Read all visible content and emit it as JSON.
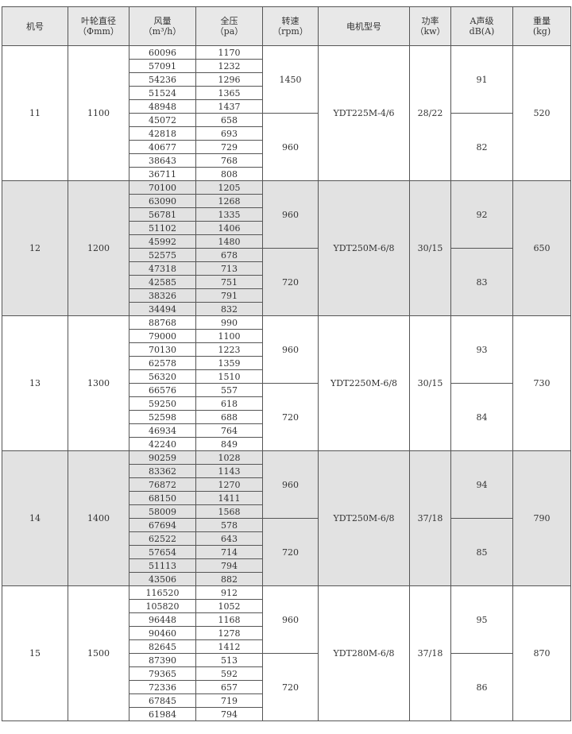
{
  "header": [
    {
      "line1": "机号",
      "line2": ""
    },
    {
      "line1": "叶轮直径",
      "line2": "（Φmm）"
    },
    {
      "line1": "风量",
      "line2": "（m³/h）"
    },
    {
      "line1": "全压",
      "line2": "（pa）"
    },
    {
      "line1": "转速",
      "line2": "（rpm）"
    },
    {
      "line1": "电机型号",
      "line2": ""
    },
    {
      "line1": "功率",
      "line2": "（kw）"
    },
    {
      "line1": "A声级",
      "line2": "dB(A)"
    },
    {
      "line1": "重量",
      "line2": "(kg)"
    }
  ],
  "groups": [
    {
      "no": "11",
      "dia": "1100",
      "motor": "YDT225M-4/6",
      "power": "28/22",
      "weight": "520",
      "shaded": false,
      "speeds": [
        {
          "rpm": "1450",
          "db": "91",
          "rows": [
            [
              "60096",
              "1170"
            ],
            [
              "57091",
              "1232"
            ],
            [
              "54236",
              "1296"
            ],
            [
              "51524",
              "1365"
            ],
            [
              "48948",
              "1437"
            ]
          ]
        },
        {
          "rpm": "960",
          "db": "82",
          "rows": [
            [
              "45072",
              "658"
            ],
            [
              "42818",
              "693"
            ],
            [
              "40677",
              "729"
            ],
            [
              "38643",
              "768"
            ],
            [
              "36711",
              "808"
            ]
          ]
        }
      ]
    },
    {
      "no": "12",
      "dia": "1200",
      "motor": "YDT250M-6/8",
      "power": "30/15",
      "weight": "650",
      "shaded": true,
      "speeds": [
        {
          "rpm": "960",
          "db": "92",
          "rows": [
            [
              "70100",
              "1205"
            ],
            [
              "63090",
              "1268"
            ],
            [
              "56781",
              "1335"
            ],
            [
              "51102",
              "1406"
            ],
            [
              "45992",
              "1480"
            ]
          ]
        },
        {
          "rpm": "720",
          "db": "83",
          "rows": [
            [
              "52575",
              "678"
            ],
            [
              "47318",
              "713"
            ],
            [
              "42585",
              "751"
            ],
            [
              "38326",
              "791"
            ],
            [
              "34494",
              "832"
            ]
          ]
        }
      ]
    },
    {
      "no": "13",
      "dia": "1300",
      "motor": "YDT2250M-6/8",
      "power": "30/15",
      "weight": "730",
      "shaded": false,
      "speeds": [
        {
          "rpm": "960",
          "db": "93",
          "rows": [
            [
              "88768",
              "990"
            ],
            [
              "79000",
              "1100"
            ],
            [
              "70130",
              "1223"
            ],
            [
              "62578",
              "1359"
            ],
            [
              "56320",
              "1510"
            ]
          ]
        },
        {
          "rpm": "720",
          "db": "84",
          "rows": [
            [
              "66576",
              "557"
            ],
            [
              "59250",
              "618"
            ],
            [
              "52598",
              "688"
            ],
            [
              "46934",
              "764"
            ],
            [
              "42240",
              "849"
            ]
          ]
        }
      ]
    },
    {
      "no": "14",
      "dia": "1400",
      "motor": "YDT250M-6/8",
      "power": "37/18",
      "weight": "790",
      "shaded": true,
      "speeds": [
        {
          "rpm": "960",
          "db": "94",
          "rows": [
            [
              "90259",
              "1028"
            ],
            [
              "83362",
              "1143"
            ],
            [
              "76872",
              "1270"
            ],
            [
              "68150",
              "1411"
            ],
            [
              "58009",
              "1568"
            ]
          ]
        },
        {
          "rpm": "720",
          "db": "85",
          "rows": [
            [
              "67694",
              "578"
            ],
            [
              "62522",
              "643"
            ],
            [
              "57654",
              "714"
            ],
            [
              "51113",
              "794"
            ],
            [
              "43506",
              "882"
            ]
          ]
        }
      ]
    },
    {
      "no": "15",
      "dia": "1500",
      "motor": "YDT280M-6/8",
      "power": "37/18",
      "weight": "870",
      "shaded": false,
      "speeds": [
        {
          "rpm": "960",
          "db": "95",
          "rows": [
            [
              "116520",
              "912"
            ],
            [
              "105820",
              "1052"
            ],
            [
              "96448",
              "1168"
            ],
            [
              "90460",
              "1278"
            ],
            [
              "82645",
              "1412"
            ]
          ]
        },
        {
          "rpm": "720",
          "db": "86",
          "rows": [
            [
              "87390",
              "513"
            ],
            [
              "79365",
              "592"
            ],
            [
              "72336",
              "657"
            ],
            [
              "67845",
              "719"
            ],
            [
              "61984",
              "794"
            ]
          ]
        }
      ]
    }
  ]
}
